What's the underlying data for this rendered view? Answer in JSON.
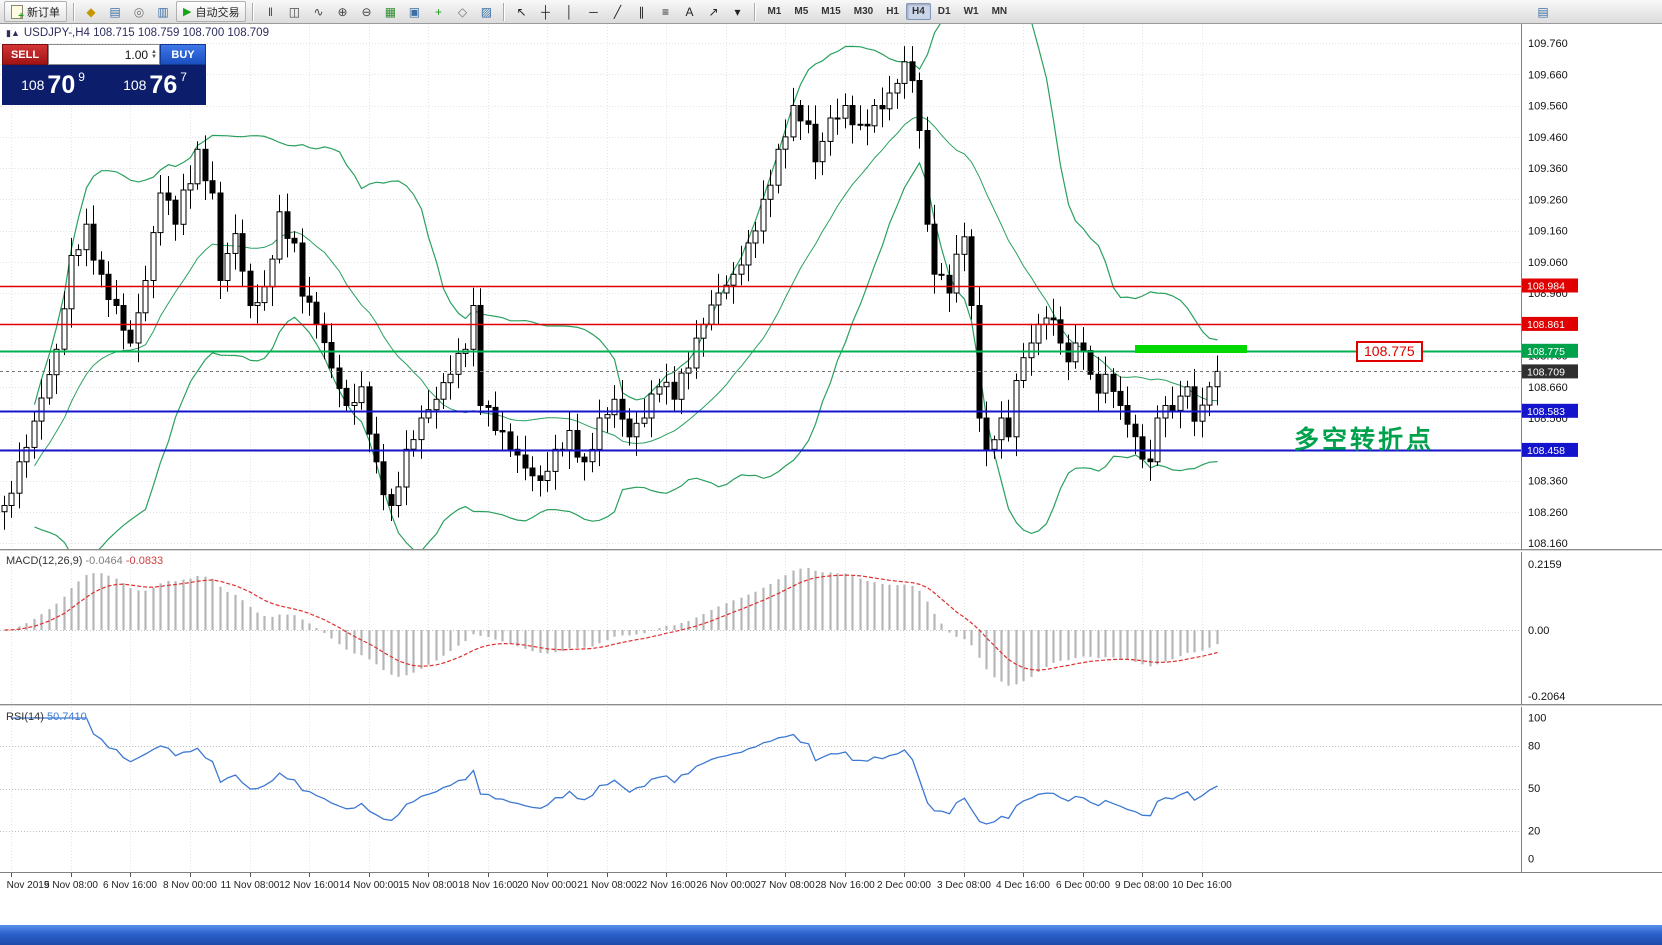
{
  "toolbar": {
    "new_order_label": "新订单",
    "autotrading_label": "自动交易",
    "window_icons": [
      {
        "name": "market-watch-icon",
        "glyph": "◆",
        "color": "#c79600"
      },
      {
        "name": "data-window-icon",
        "glyph": "▤",
        "color": "#3a6ea5"
      },
      {
        "name": "navigator-icon",
        "glyph": "◎",
        "color": "#707070"
      },
      {
        "name": "terminal-icon",
        "glyph": "▥",
        "color": "#3a6ea5"
      }
    ],
    "chart_icons": [
      {
        "name": "bar-chart-icon",
        "glyph": "‖",
        "color": "#444444"
      },
      {
        "name": "candlestick-chart-icon",
        "glyph": "◫",
        "color": "#444444"
      },
      {
        "name": "line-chart-icon",
        "glyph": "∿",
        "color": "#444444"
      },
      {
        "name": "zoom-in-icon",
        "glyph": "⊕",
        "color": "#444444"
      },
      {
        "name": "zoom-out-icon",
        "glyph": "⊖",
        "color": "#444444"
      },
      {
        "name": "tile-windows-icon",
        "glyph": "▦",
        "color": "#2e8b2e"
      },
      {
        "name": "cascade-windows-icon",
        "glyph": "▣",
        "color": "#3a6ea5"
      },
      {
        "name": "indicators-icon",
        "glyph": "+",
        "color": "#1e9e1e"
      },
      {
        "name": "periods-icon",
        "glyph": "◇",
        "color": "#707070"
      },
      {
        "name": "templates-icon",
        "glyph": "▨",
        "color": "#3a6ea5"
      }
    ],
    "tool_icons": [
      {
        "name": "cursor-icon",
        "glyph": "↖",
        "color": "#222222"
      },
      {
        "name": "crosshair-icon",
        "glyph": "┼",
        "color": "#222222"
      },
      {
        "name": "vertical-line-icon",
        "glyph": "│",
        "color": "#222222"
      },
      {
        "name": "horizontal-line-icon",
        "glyph": "─",
        "color": "#222222"
      },
      {
        "name": "trendline-icon",
        "glyph": "╱",
        "color": "#222222"
      },
      {
        "name": "channel-icon",
        "glyph": "∥",
        "color": "#222222"
      },
      {
        "name": "fibonacci-icon",
        "glyph": "≡",
        "color": "#222222"
      },
      {
        "name": "text-icon",
        "glyph": "A",
        "color": "#222222"
      },
      {
        "name": "arrows-icon",
        "glyph": "↗",
        "color": "#222222"
      },
      {
        "name": "shapes-icon",
        "glyph": "▾",
        "color": "#222222"
      }
    ],
    "right_icon": {
      "name": "chart-window-icon",
      "glyph": "▤",
      "color": "#3a6ea5"
    },
    "timeframes": [
      "M1",
      "M5",
      "M15",
      "M30",
      "H1",
      "H4",
      "D1",
      "W1",
      "MN"
    ],
    "active_timeframe": "H4"
  },
  "chart": {
    "symbol_header": "USDJPY-,H4  108.715 108.759 108.700 108.709"
  },
  "one_click": {
    "sell_label": "SELL",
    "buy_label": "BUY",
    "volume": "1.00",
    "sell_base": "108",
    "sell_big": "70",
    "sell_sup": "9",
    "buy_base": "108",
    "buy_big": "76",
    "buy_sup": "7"
  },
  "chart_data": {
    "main": {
      "type": "candlestick",
      "symbol": "USDJPY-",
      "timeframe": "H4",
      "ohlc_display": {
        "open": "108.715",
        "high": "108.759",
        "low": "108.700",
        "close": "108.709"
      },
      "y_axis": {
        "min": 108.16,
        "max": 109.76,
        "step": 0.1,
        "ticks": [
          "109.760",
          "109.660",
          "109.560",
          "109.460",
          "109.360",
          "109.260",
          "109.160",
          "109.060",
          "108.960",
          "108.860",
          "108.760",
          "108.660",
          "108.560",
          "108.460",
          "108.360",
          "108.260",
          "108.160"
        ]
      },
      "bars_total": 164,
      "price_anchors": [
        [
          0,
          108.28
        ],
        [
          2,
          108.42
        ],
        [
          4,
          108.55
        ],
        [
          7,
          108.78
        ],
        [
          9,
          109.08
        ],
        [
          11,
          109.18
        ],
        [
          13,
          109.02
        ],
        [
          15,
          108.92
        ],
        [
          17,
          108.8
        ],
        [
          19,
          109.0
        ],
        [
          21,
          109.28
        ],
        [
          23,
          109.18
        ],
        [
          26,
          109.42
        ],
        [
          28,
          109.28
        ],
        [
          29,
          109.0
        ],
        [
          31,
          109.15
        ],
        [
          33,
          108.92
        ],
        [
          35,
          108.98
        ],
        [
          37,
          109.22
        ],
        [
          39,
          109.12
        ],
        [
          40,
          108.95
        ],
        [
          42,
          108.86
        ],
        [
          44,
          108.72
        ],
        [
          46,
          108.6
        ],
        [
          48,
          108.66
        ],
        [
          50,
          108.42
        ],
        [
          52,
          108.28
        ],
        [
          54,
          108.46
        ],
        [
          56,
          108.56
        ],
        [
          58,
          108.62
        ],
        [
          60,
          108.7
        ],
        [
          62,
          108.78
        ],
        [
          63,
          108.92
        ],
        [
          64,
          108.6
        ],
        [
          66,
          108.52
        ],
        [
          68,
          108.46
        ],
        [
          70,
          108.4
        ],
        [
          72,
          108.36
        ],
        [
          74,
          108.46
        ],
        [
          76,
          108.52
        ],
        [
          78,
          108.42
        ],
        [
          80,
          108.56
        ],
        [
          82,
          108.62
        ],
        [
          84,
          108.5
        ],
        [
          86,
          108.56
        ],
        [
          88,
          108.66
        ],
        [
          90,
          108.62
        ],
        [
          92,
          108.72
        ],
        [
          94,
          108.86
        ],
        [
          96,
          108.96
        ],
        [
          98,
          109.02
        ],
        [
          100,
          109.12
        ],
        [
          102,
          109.26
        ],
        [
          104,
          109.42
        ],
        [
          106,
          109.56
        ],
        [
          108,
          109.5
        ],
        [
          109,
          109.38
        ],
        [
          111,
          109.52
        ],
        [
          113,
          109.56
        ],
        [
          115,
          109.5
        ],
        [
          117,
          109.56
        ],
        [
          119,
          109.6
        ],
        [
          121,
          109.7
        ],
        [
          122,
          109.64
        ],
        [
          123,
          109.48
        ],
        [
          124,
          109.18
        ],
        [
          125,
          109.02
        ],
        [
          127,
          108.96
        ],
        [
          129,
          109.14
        ],
        [
          130,
          108.92
        ],
        [
          131,
          108.56
        ],
        [
          132,
          108.46
        ],
        [
          134,
          108.56
        ],
        [
          135,
          108.5
        ],
        [
          136,
          108.68
        ],
        [
          138,
          108.8
        ],
        [
          139,
          108.86
        ],
        [
          140,
          108.88
        ],
        [
          142,
          108.8
        ],
        [
          143,
          108.74
        ],
        [
          144,
          108.8
        ],
        [
          146,
          108.7
        ],
        [
          147,
          108.64
        ],
        [
          148,
          108.7
        ],
        [
          150,
          108.6
        ],
        [
          151,
          108.54
        ],
        [
          152,
          108.5
        ],
        [
          154,
          108.42
        ],
        [
          155,
          108.56
        ],
        [
          156,
          108.6
        ],
        [
          158,
          108.63
        ],
        [
          159,
          108.66
        ],
        [
          160,
          108.55
        ],
        [
          162,
          108.66
        ],
        [
          163,
          108.709
        ]
      ],
      "bollinger": {
        "period": 20,
        "deviation": 2,
        "color": "#2aa05e"
      },
      "hlines": [
        {
          "price": 108.984,
          "color": "#e00000",
          "width": 1.5,
          "tag_bg": "#e00000",
          "label": "108.984"
        },
        {
          "price": 108.861,
          "color": "#e00000",
          "width": 1.5,
          "tag_bg": "#e00000",
          "label": "108.861"
        },
        {
          "price": 108.775,
          "color": "#00b050",
          "width": 2,
          "tag_bg": "#00a14b",
          "label": "108.775"
        },
        {
          "price": 108.583,
          "color": "#1414cc",
          "width": 2,
          "tag_bg": "#1414cc",
          "label": "108.583"
        },
        {
          "price": 108.458,
          "color": "#1414cc",
          "width": 2,
          "tag_bg": "#1414cc",
          "label": "108.458"
        }
      ],
      "current_price": {
        "price": 108.709,
        "label": "108.709",
        "tag_bg": "#2f2f2f"
      },
      "highlight_segment": {
        "price": 108.78,
        "from_bar": 152,
        "to_bar": 167,
        "color": "#00d800"
      },
      "price_label_box": "108.775",
      "annotation": "多空转折点"
    },
    "macd": {
      "label": "MACD(12,26,9)",
      "value_main": "-0.0464",
      "value_signal": "-0.0833",
      "params": {
        "fast": 12,
        "slow": 26,
        "signal": 9
      },
      "axis": [
        "0.2159",
        "0.00",
        "-0.2064"
      ]
    },
    "rsi": {
      "label": "RSI(14)",
      "value": "50.7410",
      "period": 14,
      "levels": [
        80,
        50,
        20
      ],
      "axis": [
        "100",
        "80",
        "50",
        "20",
        "0"
      ]
    },
    "time_axis": [
      "Nov 2019",
      "5 Nov 08:00",
      "6 Nov 16:00",
      "8 Nov 00:00",
      "11 Nov 08:00",
      "12 Nov 16:00",
      "14 Nov 00:00",
      "15 Nov 08:00",
      "18 Nov 16:00",
      "20 Nov 00:00",
      "21 Nov 08:00",
      "22 Nov 16:00",
      "26 Nov 00:00",
      "27 Nov 08:00",
      "28 Nov 16:00",
      "2 Dec 00:00",
      "3 Dec 08:00",
      "4 Dec 16:00",
      "6 Dec 00:00",
      "9 Dec 08:00",
      "10 Dec 16:00"
    ]
  }
}
